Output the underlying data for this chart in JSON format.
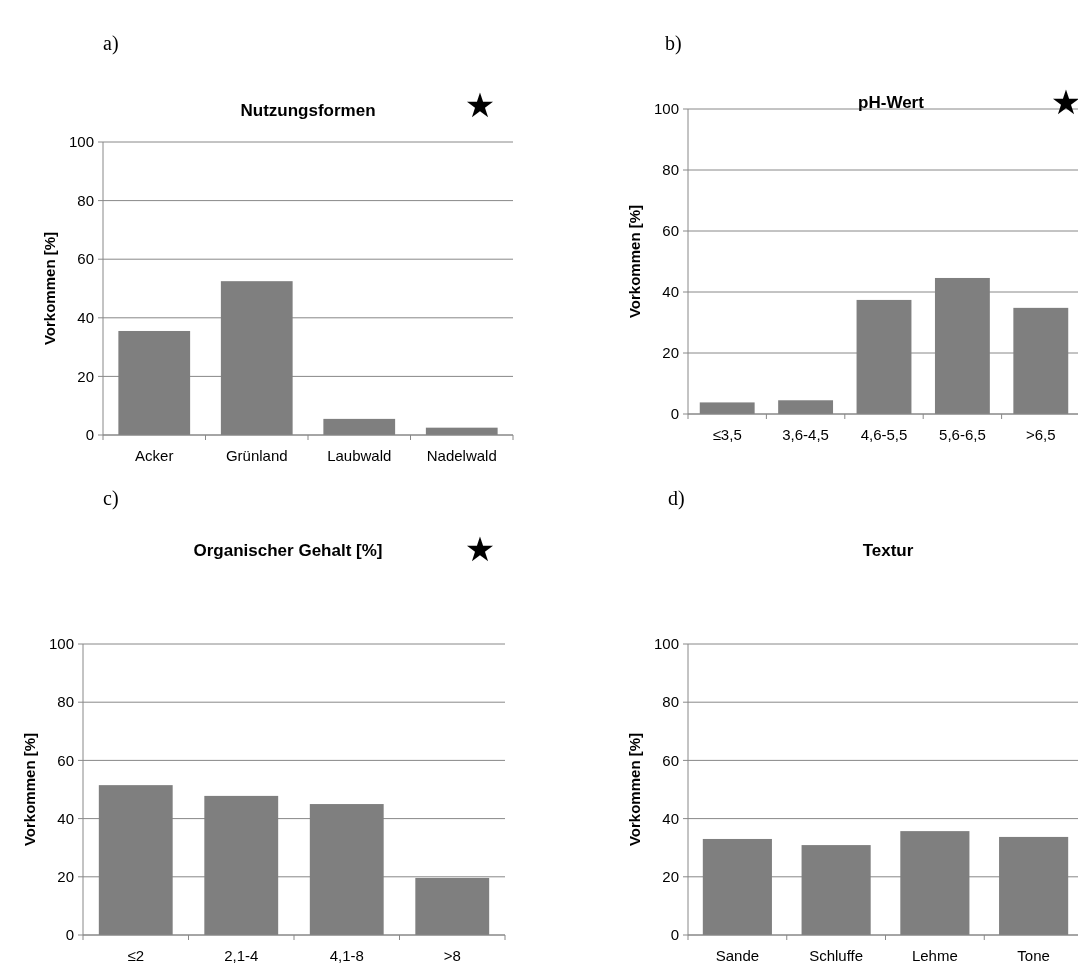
{
  "chart_data": [
    {
      "type": "bar",
      "title": "Nutzungsformen",
      "ylabel": "Vorkommen [%]",
      "categories": [
        "Acker",
        "Grünland",
        "Laubwald",
        "Nadelwald"
      ],
      "values": [
        35.5,
        52.5,
        5.5,
        2.5
      ],
      "color": "#7f7f7f",
      "ylim": [
        0,
        100
      ],
      "yticks": [
        0,
        20,
        40,
        60,
        80,
        100
      ],
      "grid": "y",
      "annotations": [
        "a)",
        "★"
      ]
    },
    {
      "type": "bar",
      "title": "pH-Wert",
      "ylabel": "Vorkommen [%]",
      "categories": [
        "≤3,5",
        "3,6-4,5",
        "4,6-5,5",
        "5,6-6,5",
        ">6,5"
      ],
      "values": [
        3.8,
        4.5,
        37.4,
        44.6,
        34.8
      ],
      "color": "#7f7f7f",
      "ylim": [
        0,
        100
      ],
      "yticks": [
        0,
        20,
        40,
        60,
        80,
        100
      ],
      "grid": "y",
      "annotations": [
        "b)",
        "★"
      ]
    },
    {
      "type": "bar",
      "title": "Organischer Gehalt [%]",
      "ylabel": "Vorkommen [%]",
      "categories": [
        "≤2",
        "2,1-4",
        "4,1-8",
        ">8"
      ],
      "values": [
        51.5,
        47.8,
        45,
        19.6
      ],
      "color": "#7f7f7f",
      "ylim": [
        0,
        100
      ],
      "yticks": [
        0,
        20,
        40,
        60,
        80,
        100
      ],
      "grid": "y",
      "annotations": [
        "c)",
        "★"
      ]
    },
    {
      "type": "bar",
      "title": "Textur",
      "ylabel": "Vorkommen [%]",
      "categories": [
        "Sande",
        "Schluffe",
        "Lehme",
        "Tone"
      ],
      "values": [
        33,
        30.9,
        35.7,
        33.7
      ],
      "color": "#7f7f7f",
      "ylim": [
        0,
        100
      ],
      "yticks": [
        0,
        20,
        40,
        60,
        80,
        100
      ],
      "grid": "y",
      "annotations": [
        "d)"
      ]
    }
  ]
}
